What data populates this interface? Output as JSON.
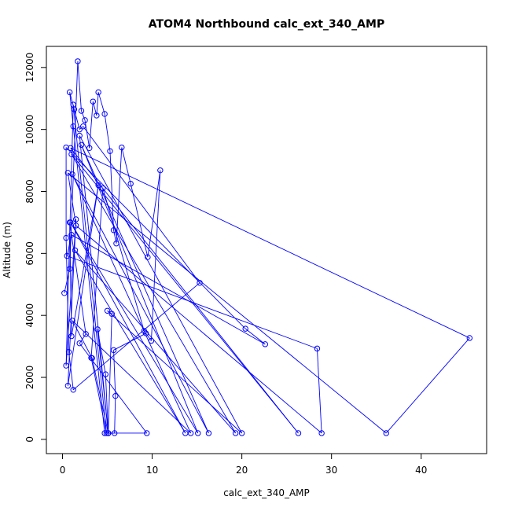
{
  "chart_data": {
    "type": "line",
    "title": "ATOM4 Northbound calc_ext_340_AMP",
    "xlabel": "calc_ext_340_AMP",
    "ylabel": "Altitude (m)",
    "xlim": [
      -1.8,
      47.3
    ],
    "ylim": [
      -460,
      12680
    ],
    "xticks": [
      0,
      10,
      20,
      30,
      40
    ],
    "xtick_labels": [
      "0",
      "10",
      "20",
      "30",
      "40"
    ],
    "yticks": [
      0,
      2000,
      4000,
      6000,
      8000,
      10000,
      12000
    ],
    "ytick_labels": [
      "0",
      "2000",
      "4000",
      "6000",
      "8000",
      "10000",
      "12000"
    ],
    "grid": false,
    "series_color": "#0000ff",
    "marker": "open-circle",
    "series": [
      {
        "points": [
          [
            0.2,
            4720
          ],
          [
            0.8,
            5500
          ],
          [
            1.7,
            12200
          ],
          [
            2.1,
            10600
          ],
          [
            2.5,
            10300
          ],
          [
            3.0,
            9400
          ],
          [
            3.4,
            10900
          ],
          [
            3.8,
            10450
          ],
          [
            4.0,
            11200
          ],
          [
            4.7,
            10500
          ],
          [
            5.3,
            9300
          ],
          [
            5.7,
            6750
          ],
          [
            6.0,
            6320
          ],
          [
            6.6,
            9420
          ],
          [
            7.6,
            8250
          ],
          [
            9.5,
            5880
          ],
          [
            10.9,
            8680
          ],
          [
            9.9,
            3180
          ],
          [
            9.3,
            3420
          ],
          [
            5.7,
            2880
          ],
          [
            5.9,
            1400
          ],
          [
            5.8,
            200
          ],
          [
            4.7,
            200
          ],
          [
            1.2,
            10100
          ],
          [
            0.8,
            11200
          ],
          [
            1.3,
            10650
          ],
          [
            1.9,
            10000
          ],
          [
            2.3,
            10100
          ],
          [
            15.3,
            5050
          ],
          [
            1.2,
            1600
          ],
          [
            0.7,
            2820
          ],
          [
            0.4,
            6500
          ],
          [
            0.4,
            9420
          ],
          [
            20.4,
            3570
          ],
          [
            22.6,
            3070
          ],
          [
            1.0,
            6600
          ],
          [
            0.5,
            5920
          ],
          [
            28.4,
            2930
          ],
          [
            28.9,
            200
          ],
          [
            1.5,
            6900
          ],
          [
            0.6,
            8600
          ],
          [
            36.1,
            200
          ],
          [
            45.4,
            3270
          ],
          [
            0.9,
            9400
          ],
          [
            26.3,
            200
          ],
          [
            1.0,
            9200
          ],
          [
            19.3,
            200
          ],
          [
            1.4,
            6100
          ],
          [
            13.7,
            200
          ],
          [
            0.9,
            7000
          ],
          [
            15.1,
            200
          ],
          [
            2.1,
            9500
          ],
          [
            16.3,
            200
          ],
          [
            1.1,
            8550
          ],
          [
            14.3,
            200
          ],
          [
            1.1,
            3830
          ],
          [
            3.3,
            2620
          ],
          [
            5.1,
            200
          ],
          [
            1.9,
            9800
          ],
          [
            20.0,
            200
          ],
          [
            5.0,
            4150
          ],
          [
            5.5,
            4050
          ],
          [
            5.1,
            200
          ],
          [
            3.9,
            3550
          ],
          [
            4.8,
            2100
          ],
          [
            5.1,
            200
          ],
          [
            9.4,
            200
          ],
          [
            1.9,
            3100
          ],
          [
            2.6,
            3400
          ],
          [
            0.8,
            7000
          ],
          [
            1.0,
            3330
          ],
          [
            4.0,
            8200
          ],
          [
            0.6,
            1730
          ],
          [
            1.5,
            7100
          ],
          [
            0.4,
            2380
          ],
          [
            1.2,
            10800
          ],
          [
            4.9,
            200
          ],
          [
            3.2,
            2630
          ],
          [
            4.5,
            8100
          ],
          [
            9.1,
            3500
          ]
        ]
      }
    ]
  }
}
